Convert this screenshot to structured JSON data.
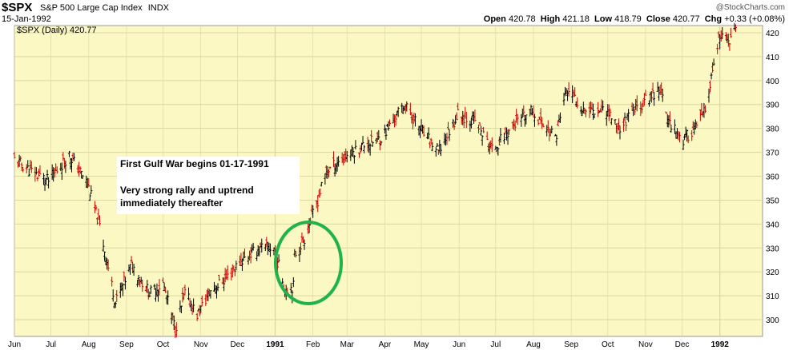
{
  "header": {
    "symbol": "$SPX",
    "index_name": "S&P 500 Large Cap Index",
    "exchange": "INDX",
    "date": "15-Jan-1992",
    "brand": "@StockCharts.com",
    "open_label": "Open",
    "open": "420.78",
    "high_label": "High",
    "high": "421.18",
    "low_label": "Low",
    "low": "418.79",
    "close_label": "Close",
    "close": "420.77",
    "chg_label": "Chg",
    "chg": "+0.33 (+0.08%)",
    "legend": "$SPX (Daily) 420.77"
  },
  "annotation": {
    "line1": "First Gulf War begins 01-17-1991",
    "line2": "Very strong rally and uptrend",
    "line3": "immediately thereafter"
  },
  "colors": {
    "background": "#fbf8c3",
    "up_bar": "#000000",
    "down_bar": "#cc0000",
    "circle": "#1fb34a",
    "grid": "#d9d6a0"
  },
  "chart_data": {
    "type": "line",
    "title": "$SPX (Daily) 420.77",
    "ylim": [
      293,
      423
    ],
    "yticks": [
      300,
      310,
      320,
      330,
      340,
      350,
      360,
      370,
      380,
      390,
      400,
      410,
      420
    ],
    "x_ticks": [
      "Jun",
      "Jul",
      "Aug",
      "Sep",
      "Oct",
      "Nov",
      "Dec",
      "1991",
      "Feb",
      "Mar",
      "Apr",
      "May",
      "Jun",
      "Jul",
      "Aug",
      "Sep",
      "Oct",
      "Nov",
      "Dec",
      "1992"
    ],
    "series": [
      {
        "values": [
          {
            "x": "1990-06-01",
            "y": 367
          },
          {
            "x": "1990-06-15",
            "y": 362
          },
          {
            "x": "1990-06-29",
            "y": 358
          },
          {
            "x": "1990-07-16",
            "y": 369
          },
          {
            "x": "1990-07-31",
            "y": 357
          },
          {
            "x": "1990-08-10",
            "y": 339
          },
          {
            "x": "1990-08-23",
            "y": 307
          },
          {
            "x": "1990-09-05",
            "y": 323
          },
          {
            "x": "1990-09-20",
            "y": 311
          },
          {
            "x": "1990-10-01",
            "y": 315
          },
          {
            "x": "1990-10-11",
            "y": 296
          },
          {
            "x": "1990-10-19",
            "y": 311
          },
          {
            "x": "1990-10-29",
            "y": 302
          },
          {
            "x": "1990-11-09",
            "y": 312
          },
          {
            "x": "1990-11-21",
            "y": 317
          },
          {
            "x": "1990-12-05",
            "y": 325
          },
          {
            "x": "1990-12-20",
            "y": 330
          },
          {
            "x": "1990-12-31",
            "y": 330
          },
          {
            "x": "1991-01-09",
            "y": 313
          },
          {
            "x": "1991-01-16",
            "y": 314
          },
          {
            "x": "1991-01-17",
            "y": 327
          },
          {
            "x": "1991-01-25",
            "y": 334
          },
          {
            "x": "1991-02-05",
            "y": 350
          },
          {
            "x": "1991-02-12",
            "y": 362
          },
          {
            "x": "1991-02-27",
            "y": 368
          },
          {
            "x": "1991-03-15",
            "y": 373
          },
          {
            "x": "1991-03-29",
            "y": 376
          },
          {
            "x": "1991-04-17",
            "y": 390
          },
          {
            "x": "1991-05-01",
            "y": 379
          },
          {
            "x": "1991-05-15",
            "y": 370
          },
          {
            "x": "1991-05-31",
            "y": 386
          },
          {
            "x": "1991-06-14",
            "y": 383
          },
          {
            "x": "1991-06-28",
            "y": 371
          },
          {
            "x": "1991-07-15",
            "y": 381
          },
          {
            "x": "1991-07-31",
            "y": 387
          },
          {
            "x": "1991-08-19",
            "y": 376
          },
          {
            "x": "1991-08-28",
            "y": 396
          },
          {
            "x": "1991-09-12",
            "y": 388
          },
          {
            "x": "1991-09-30",
            "y": 388
          },
          {
            "x": "1991-10-10",
            "y": 380
          },
          {
            "x": "1991-10-24",
            "y": 388
          },
          {
            "x": "1991-11-13",
            "y": 397
          },
          {
            "x": "1991-11-18",
            "y": 385
          },
          {
            "x": "1991-12-02",
            "y": 375
          },
          {
            "x": "1991-12-13",
            "y": 381
          },
          {
            "x": "1991-12-20",
            "y": 387
          },
          {
            "x": "1991-12-31",
            "y": 417
          },
          {
            "x": "1992-01-08",
            "y": 417
          },
          {
            "x": "1992-01-15",
            "y": 420.77
          }
        ]
      }
    ]
  }
}
